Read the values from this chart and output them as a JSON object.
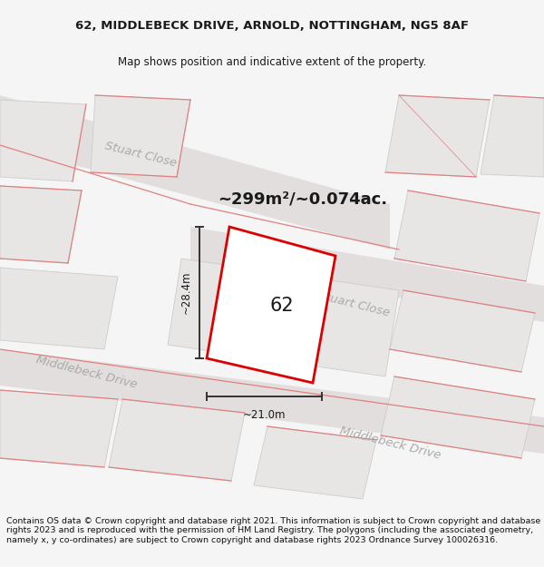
{
  "title": "62, MIDDLEBECK DRIVE, ARNOLD, NOTTINGHAM, NG5 8AF",
  "subtitle": "Map shows position and indicative extent of the property.",
  "area_label": "~299m²/~0.074ac.",
  "property_number": "62",
  "dim_width": "~21.0m",
  "dim_height": "~28.4m",
  "footer": "Contains OS data © Crown copyright and database right 2021. This information is subject to Crown copyright and database rights 2023 and is reproduced with the permission of HM Land Registry. The polygons (including the associated geometry, namely x, y co-ordinates) are subject to Crown copyright and database rights 2023 Ordnance Survey 100026316.",
  "bg_color": "#f5f5f5",
  "map_bg": "#f0eeee",
  "road_fill": "#e2dede",
  "block_fill": "#e8e5e5",
  "block_edge": "#cccccc",
  "red_line": "#e08080",
  "plot_color": "#dd0000",
  "plot_fill": "#ffffff",
  "street_text_color": "#aaaaaa",
  "dim_color": "#333333",
  "title_color": "#1a1a1a",
  "footer_color": "#111111",
  "title_fontsize": 9.5,
  "subtitle_fontsize": 8.5,
  "area_fontsize": 13,
  "street_fontsize": 9.5,
  "prop_num_fontsize": 15,
  "dim_fontsize": 8.5,
  "footer_fontsize": 6.8
}
